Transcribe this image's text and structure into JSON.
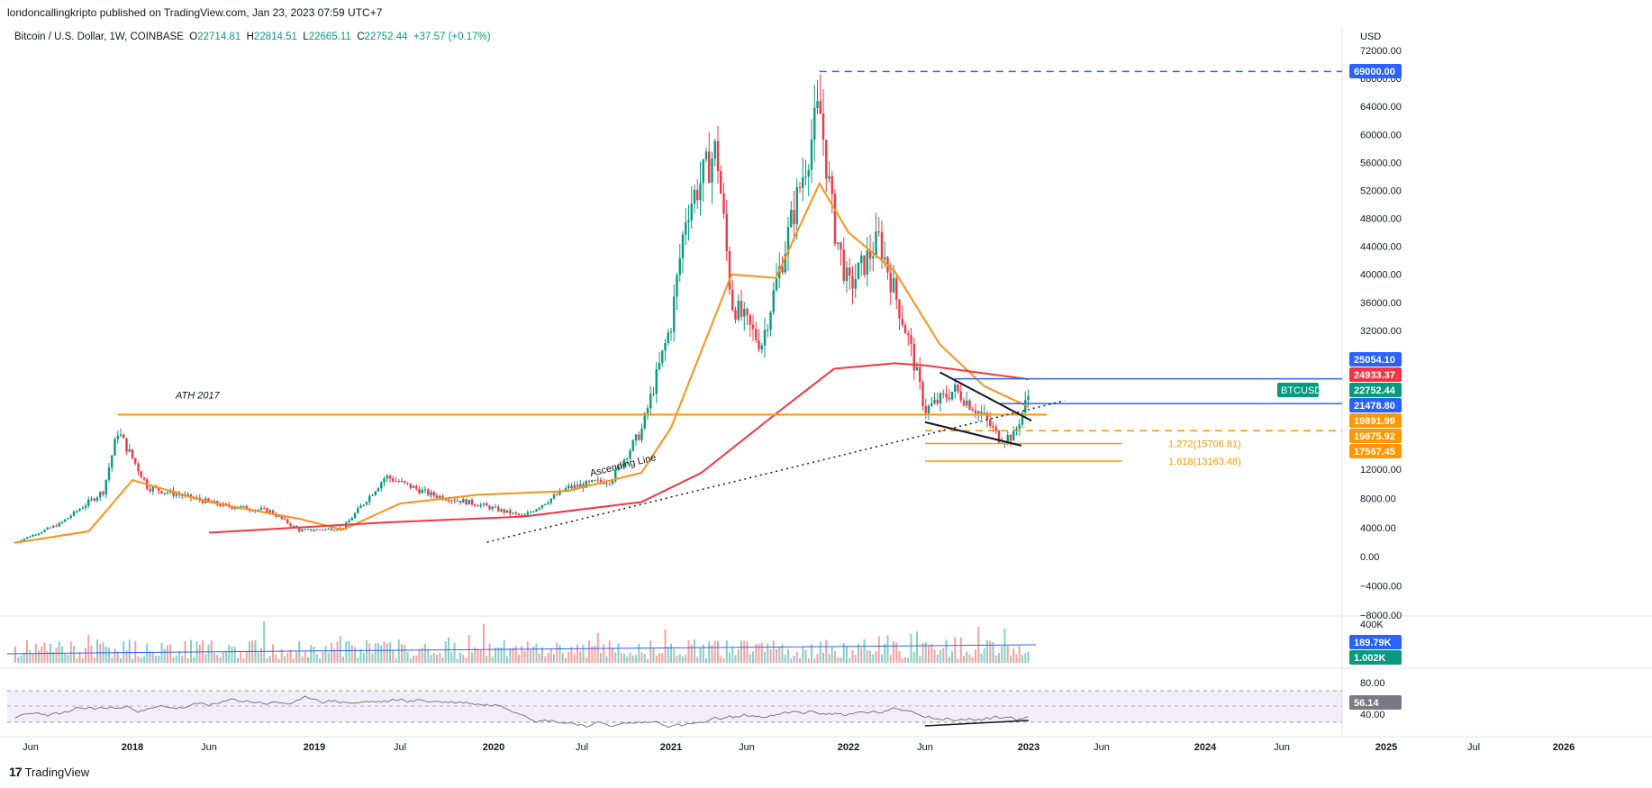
{
  "header": {
    "published": "londoncallingkripto published on TradingView.com, Jan 23, 2023 07:59 UTC+7"
  },
  "legend": {
    "symbol": "Bitcoin / U.S. Dollar, 1W, COINBASE",
    "o_label": "O",
    "o": "22714.81",
    "h_label": "H",
    "h": "22814.51",
    "l_label": "L",
    "l": "22665.11",
    "c_label": "C",
    "c": "22752.44",
    "change": "+37.57 (+0.17%)"
  },
  "footer": {
    "brand": "TradingView"
  },
  "colors": {
    "up": "#089981",
    "down": "#f23645",
    "ema_orange": "#f7931a",
    "ma_red": "#f23645",
    "blue": "#2962ff",
    "orange_line": "#ff9800"
  },
  "chart_data": {
    "type": "line",
    "title": "Bitcoin / U.S. Dollar, 1W, COINBASE",
    "currency_label": "USD",
    "ylim": [
      -9000,
      74000
    ],
    "y_ticks": [
      72000,
      68000,
      64000,
      60000,
      56000,
      52000,
      48000,
      44000,
      40000,
      36000,
      32000,
      28000,
      12000,
      8000,
      4000,
      0,
      -4000,
      -8000
    ],
    "y_tick_labels": [
      "72000.00",
      "68000.00",
      "64000.00",
      "60000.00",
      "56000.00",
      "52000.00",
      "48000.00",
      "44000.00",
      "40000.00",
      "36000.00",
      "32000.00",
      "28000.00",
      "12000.00",
      "8000.00",
      "4000.00",
      "0.00",
      "−4000.00",
      "−8000.00"
    ],
    "x_ticks": [
      {
        "label": "Jun",
        "date": "2017-06"
      },
      {
        "label": "2018",
        "date": "2018-01"
      },
      {
        "label": "Jun",
        "date": "2018-06"
      },
      {
        "label": "2019",
        "date": "2019-01"
      },
      {
        "label": "Jul",
        "date": "2019-07"
      },
      {
        "label": "2020",
        "date": "2020-01"
      },
      {
        "label": "Jul",
        "date": "2020-07"
      },
      {
        "label": "2021",
        "date": "2021-01"
      },
      {
        "label": "Jun",
        "date": "2021-06"
      },
      {
        "label": "2022",
        "date": "2022-01"
      },
      {
        "label": "Jun",
        "date": "2022-06"
      },
      {
        "label": "2023",
        "date": "2023-01"
      },
      {
        "label": "Jun",
        "date": "2023-06"
      },
      {
        "label": "2024",
        "date": "2024-01"
      },
      {
        "label": "Jun",
        "date": "2024-06"
      },
      {
        "label": "2025",
        "date": "2025-01"
      },
      {
        "label": "Jul",
        "date": "2025-07"
      },
      {
        "label": "2026",
        "date": "2026-01"
      }
    ],
    "series": [
      {
        "name": "BTCUSD",
        "style": "candles",
        "x": [
          "2017-05",
          "2017-08",
          "2017-11",
          "2017-12",
          "2018-02",
          "2018-04",
          "2018-07",
          "2018-10",
          "2018-12",
          "2019-03",
          "2019-06",
          "2019-09",
          "2019-12",
          "2020-03",
          "2020-06",
          "2020-09",
          "2020-11",
          "2021-01",
          "2021-02",
          "2021-04",
          "2021-05",
          "2021-07",
          "2021-09",
          "2021-11",
          "2021-12",
          "2022-01",
          "2022-03",
          "2022-05",
          "2022-06",
          "2022-08",
          "2022-10",
          "2022-11",
          "2022-12",
          "2023-01"
        ],
        "values": [
          2000,
          4500,
          9000,
          17500,
          9500,
          8500,
          7000,
          6300,
          3600,
          3900,
          11000,
          8500,
          7200,
          5500,
          9400,
          10600,
          17500,
          33000,
          49000,
          58000,
          36000,
          30000,
          47000,
          64000,
          47000,
          38000,
          45000,
          30000,
          20500,
          23500,
          19500,
          16500,
          16800,
          22750
        ]
      },
      {
        "name": "",
        "style": "line-orange",
        "x": [
          "2017-05",
          "2017-10",
          "2018-01",
          "2018-06",
          "2018-12",
          "2019-03",
          "2019-07",
          "2019-12",
          "2020-06",
          "2020-11",
          "2021-01",
          "2021-05",
          "2021-08",
          "2021-11",
          "2022-01",
          "2022-04",
          "2022-07",
          "2022-10",
          "2023-01"
        ],
        "values": [
          1900,
          3500,
          10500,
          7500,
          5200,
          3700,
          7300,
          8500,
          9000,
          11500,
          18000,
          40000,
          39500,
          53000,
          46000,
          40500,
          30000,
          24000,
          21000
        ]
      },
      {
        "name": "",
        "style": "line-red",
        "x": [
          "2018-06",
          "2019-06",
          "2020-03",
          "2020-11",
          "2021-03",
          "2021-08",
          "2021-12",
          "2022-04",
          "2022-06",
          "2023-01"
        ],
        "values": [
          3300,
          4700,
          5500,
          7500,
          11500,
          20000,
          26500,
          27300,
          27000,
          25000
        ]
      }
    ],
    "price_labels": [
      {
        "text": "69000.00",
        "value": 69000,
        "color": "#2962ff"
      },
      {
        "text": "25054.10",
        "value": 25054.1,
        "color": "#2962ff"
      },
      {
        "text": "24933.37",
        "value": 24933.37,
        "color": "#f23645"
      },
      {
        "text": "22752.44",
        "value": 22752.44,
        "color": "#089981",
        "tag": "BTCUSD"
      },
      {
        "text": "21478.80",
        "value": 21478.8,
        "color": "#2962ff"
      },
      {
        "text": "19891.99",
        "value": 19891.99,
        "color": "#ff9800"
      },
      {
        "text": "19875.92",
        "value": 19875.92,
        "color": "#ff9800"
      },
      {
        "text": "17567.45",
        "value": 17567.45,
        "color": "#ff9800"
      }
    ],
    "annotations": [
      {
        "text": "ATH 2017"
      },
      {
        "text": "Ascending Line"
      },
      {
        "text": "1.272(15706.81)",
        "value": 15706.81
      },
      {
        "text": "1.618(13163.48)",
        "value": 13163.48
      }
    ],
    "volume": {
      "y_tick": "400K",
      "labels": [
        {
          "text": "189.79K",
          "color": "#2962ff"
        },
        {
          "text": "1.002K",
          "color": "#089981"
        }
      ]
    },
    "rsi": {
      "y_ticks": [
        "80.00",
        "40.00"
      ],
      "value_label": "56.14",
      "band": [
        30,
        70
      ]
    }
  }
}
